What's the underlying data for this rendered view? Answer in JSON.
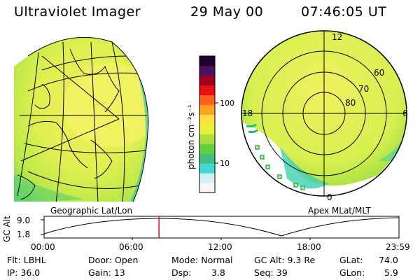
{
  "header": {
    "title": "Ultraviolet Imager",
    "date": "29 May 00",
    "time": "07:46:05 UT"
  },
  "left_panel": {
    "caption": "Geographic Lat/Lon"
  },
  "right_panel": {
    "caption": "Apex MLat/MLT",
    "mlt_labels": {
      "top": "12",
      "left": "18",
      "right": "6",
      "bottom": "0"
    },
    "lat_labels": [
      "60",
      "70",
      "80"
    ]
  },
  "colorbar": {
    "unit_label": "photon cm⁻²s⁻¹",
    "ticks": [
      "100",
      "10"
    ],
    "colors": [
      "#f6f6f6",
      "#d0f0f6",
      "#40d8d8",
      "#40c080",
      "#60d040",
      "#a8e040",
      "#e8f040",
      "#ffe040",
      "#ffa020",
      "#ff6020",
      "#e81010",
      "#a00020",
      "#501060",
      "#200030"
    ]
  },
  "alt_plot": {
    "ylabel": "GC Alt",
    "y_ticks": [
      "9.0",
      "1.8"
    ],
    "x_ticks": [
      "00:00",
      "06:00",
      "12:00",
      "18:00",
      "23:59"
    ],
    "current_time_hours": 7.77,
    "marker_color": "#e01010"
  },
  "status": {
    "flt": "Flt: LBHL",
    "ip": "IP: 36.0",
    "door": "Door: Open",
    "gain": "Gain: 13",
    "mode": "Mode: Normal",
    "dsp_label": "Dsp:",
    "dsp_value": "3.8",
    "gcalt": "GC Alt: 9.3 Re",
    "seq": "Seq: 39",
    "glat_label": "GLat:",
    "glat_value": "74.0",
    "glon_label": "GLon:",
    "glon_value": "5.9"
  }
}
